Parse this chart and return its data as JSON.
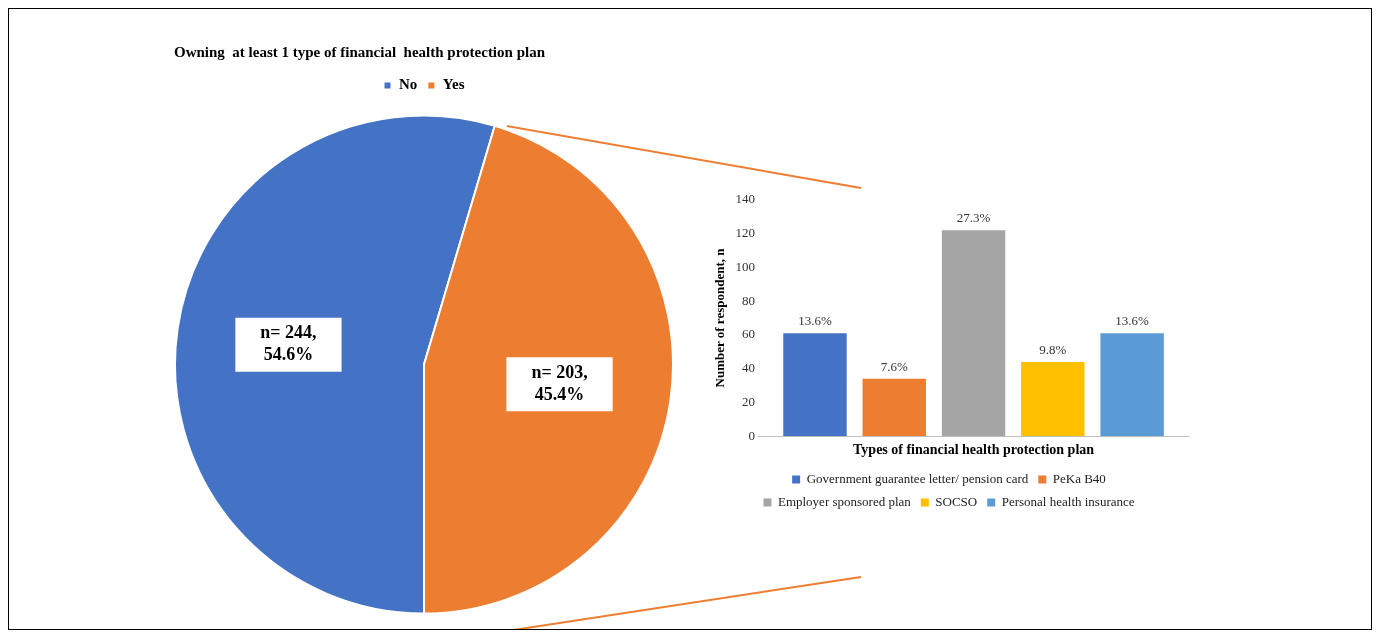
{
  "chart_data": [
    {
      "type": "pie",
      "title": "Owning  at least 1 type of financial  health protection plan",
      "categories": [
        "No",
        "Yes"
      ],
      "values": [
        244,
        203
      ],
      "colors": [
        "#4472c4",
        "#ed7d31"
      ],
      "value_labels": [
        "n= 244, 54.6%",
        "n= 203, 45.4%"
      ],
      "legend": "top"
    },
    {
      "type": "bar",
      "categories": [
        null
      ],
      "xlabel": "Types of financial health protection plan",
      "ylabel": "Number of respondent, n",
      "ylim": [
        0,
        140
      ],
      "yticks": [
        0,
        20,
        40,
        60,
        80,
        100,
        120,
        140
      ],
      "tick_labels": "y",
      "legend": "bottom",
      "series": [
        {
          "name": "Government guarantee letter/ pension card",
          "color": "#4472c4",
          "values": [
            61
          ]
        },
        {
          "name": "PeKa B40",
          "color": "#ed7d31",
          "values": [
            34
          ]
        },
        {
          "name": "Employer sponsored plan",
          "color": "#a5a5a5",
          "values": [
            122
          ]
        },
        {
          "name": "SOCSO",
          "color": "#ffc000",
          "values": [
            44
          ]
        },
        {
          "name": "Personal health insurance",
          "color": "#5b9bd5",
          "values": [
            61
          ]
        }
      ],
      "annotations": [
        {
          "text": "13.6%",
          "y": 61
        },
        {
          "text": "7.6%",
          "y": 34
        },
        {
          "text": "27.3%",
          "y": 122
        },
        {
          "text": "9.8%",
          "y": 44
        },
        {
          "text": "13.6%",
          "y": 61
        }
      ]
    }
  ]
}
